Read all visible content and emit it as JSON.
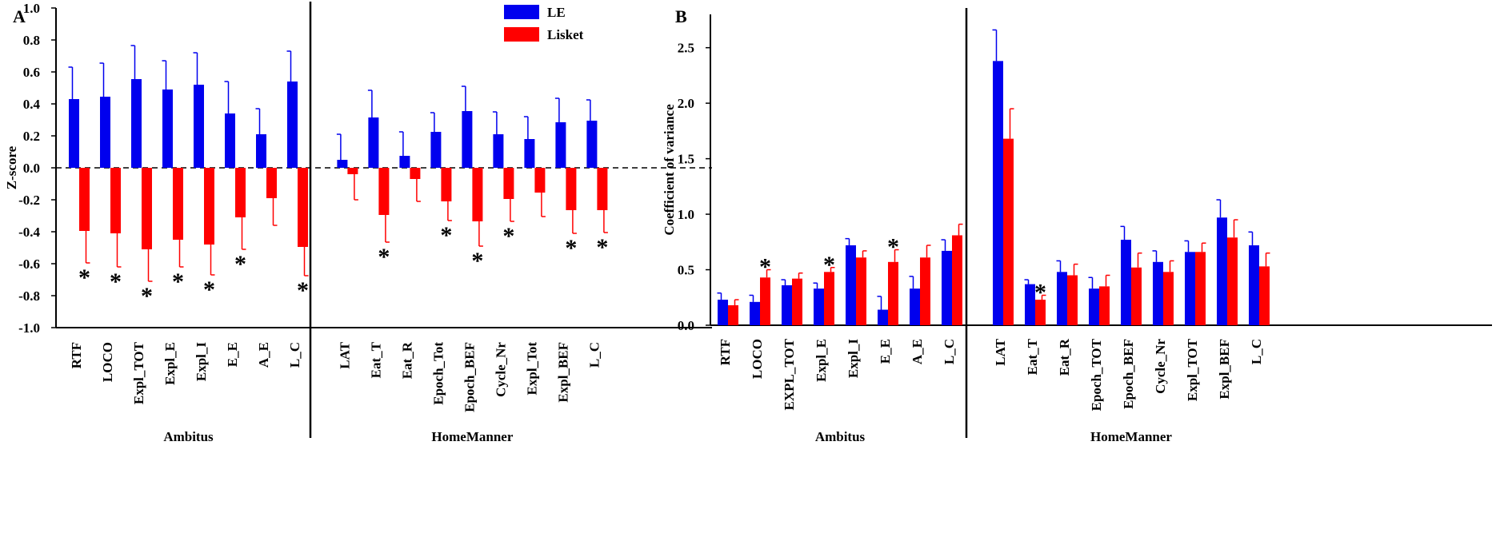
{
  "colors": {
    "le": "#0000ee",
    "lisket": "#ff0000",
    "axis": "#000000"
  },
  "chart_data": [
    {
      "panel": "A",
      "type": "bar",
      "ylabel": "Z-score",
      "ylim": [
        -1.0,
        1.0
      ],
      "yticks": [
        "-1.0",
        "-0.8",
        "-0.6",
        "-0.4",
        "-0.2",
        "0.0",
        "0.2",
        "0.4",
        "0.6",
        "0.8",
        "1.0"
      ],
      "legend": [
        "LE",
        "Lisket"
      ],
      "groups": [
        {
          "label": "Ambitus",
          "categories": [
            "RTF",
            "LOCO",
            "Expl_TOT",
            "Expl_E",
            "Expl_I",
            "E_E",
            "A_E",
            "L_C"
          ]
        },
        {
          "label": "HomeManner",
          "categories": [
            "LAT",
            "Eat_T",
            "Eat_R",
            "Epoch_Tot",
            "Epoch_BEF",
            "Cycle_Nr",
            "Expl_Tot",
            "Expl_BEF",
            "L_C"
          ]
        }
      ],
      "series": [
        {
          "name": "LE",
          "values": [
            0.43,
            0.445,
            0.555,
            0.49,
            0.52,
            0.34,
            0.21,
            0.54,
            0.05,
            0.315,
            0.075,
            0.225,
            0.355,
            0.21,
            0.18,
            0.285,
            0.295
          ],
          "errors": [
            0.2,
            0.21,
            0.21,
            0.18,
            0.2,
            0.2,
            0.16,
            0.19,
            0.16,
            0.17,
            0.15,
            0.12,
            0.155,
            0.14,
            0.14,
            0.15,
            0.13
          ]
        },
        {
          "name": "Lisket",
          "values": [
            -0.395,
            -0.41,
            -0.51,
            -0.45,
            -0.48,
            -0.31,
            -0.19,
            -0.495,
            -0.04,
            -0.295,
            -0.07,
            -0.21,
            -0.335,
            -0.195,
            -0.155,
            -0.265,
            -0.265
          ],
          "errors": [
            0.2,
            0.21,
            0.2,
            0.17,
            0.19,
            0.2,
            0.17,
            0.18,
            0.16,
            0.17,
            0.14,
            0.12,
            0.155,
            0.14,
            0.15,
            0.145,
            0.14
          ]
        }
      ],
      "significant": [
        true,
        true,
        true,
        true,
        true,
        true,
        false,
        true,
        false,
        true,
        false,
        true,
        true,
        true,
        false,
        true,
        true
      ],
      "marker": "*"
    },
    {
      "panel": "B",
      "type": "bar",
      "ylabel": "Coefficient of variance",
      "ylim": [
        0.0,
        2.8
      ],
      "yticks": [
        "0.0",
        "0.5",
        "1.0",
        "1.5",
        "2.0",
        "2.5"
      ],
      "groups": [
        {
          "label": "Ambitus",
          "categories": [
            "RTF",
            "LOCO",
            "EXPL_TOT",
            "Expl_E",
            "Expl_I",
            "E_E",
            "A_E",
            "L_C"
          ]
        },
        {
          "label": "HomeManner",
          "categories": [
            "LAT",
            "Eat_T",
            "Eat_R",
            "Epoch_TOT",
            "Epoch_BEF",
            "Cycle_Nr",
            "Expl_TOT",
            "Expl_BEF",
            "L_C"
          ]
        }
      ],
      "series": [
        {
          "name": "LE",
          "values": [
            0.23,
            0.21,
            0.36,
            0.33,
            0.72,
            0.14,
            0.33,
            0.67,
            2.38,
            0.37,
            0.48,
            0.33,
            0.77,
            0.57,
            0.66,
            0.97,
            0.72
          ],
          "errors": [
            0.06,
            0.06,
            0.05,
            0.05,
            0.06,
            0.12,
            0.11,
            0.1,
            0.28,
            0.04,
            0.1,
            0.1,
            0.12,
            0.1,
            0.1,
            0.16,
            0.12
          ]
        },
        {
          "name": "Lisket",
          "values": [
            0.18,
            0.43,
            0.42,
            0.48,
            0.61,
            0.57,
            0.61,
            0.81,
            1.68,
            0.23,
            0.45,
            0.35,
            0.52,
            0.48,
            0.66,
            0.79,
            0.53
          ],
          "errors": [
            0.05,
            0.07,
            0.05,
            0.04,
            0.06,
            0.11,
            0.11,
            0.1,
            0.27,
            0.04,
            0.1,
            0.1,
            0.13,
            0.1,
            0.08,
            0.16,
            0.12
          ]
        }
      ],
      "significant": [
        false,
        true,
        false,
        true,
        false,
        true,
        false,
        false,
        false,
        true,
        false,
        false,
        false,
        false,
        false,
        false,
        false
      ],
      "marker": "*"
    }
  ]
}
